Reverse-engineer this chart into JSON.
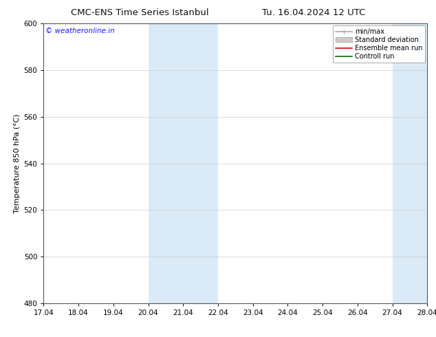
{
  "title_left": "CMC-ENS Time Series Istanbul",
  "title_right": "Tu. 16.04.2024 12 UTC",
  "ylabel": "Temperature 850 hPa (°C)",
  "ylim": [
    480,
    600
  ],
  "yticks": [
    480,
    500,
    520,
    540,
    560,
    580,
    600
  ],
  "xlim": [
    0,
    11
  ],
  "xtick_positions": [
    0,
    1,
    2,
    3,
    4,
    5,
    6,
    7,
    8,
    9,
    10,
    11
  ],
  "xtick_labels": [
    "17.04",
    "18.04",
    "19.04",
    "20.04",
    "21.04",
    "22.04",
    "23.04",
    "24.04",
    "25.04",
    "26.04",
    "27.04",
    "28.04"
  ],
  "shaded_bands": [
    {
      "xmin": 3.0,
      "xmax": 5.0
    },
    {
      "xmin": 10.0,
      "xmax": 11.5
    }
  ],
  "shade_color": "#daeaf7",
  "background_color": "#ffffff",
  "watermark_text": "© weatheronline.in",
  "watermark_color": "#1a1aff",
  "legend_entries": [
    {
      "label": "min/max",
      "color": "#aaaaaa",
      "lw": 1.2,
      "type": "line_bar"
    },
    {
      "label": "Standard deviation",
      "color": "#cccccc",
      "lw": 5,
      "type": "patch"
    },
    {
      "label": "Ensemble mean run",
      "color": "#dd0000",
      "lw": 1.2,
      "type": "line"
    },
    {
      "label": "Controll run",
      "color": "#006600",
      "lw": 1.2,
      "type": "line"
    }
  ],
  "title_fontsize": 9.5,
  "ylabel_fontsize": 8,
  "tick_fontsize": 7.5,
  "legend_fontsize": 7,
  "watermark_fontsize": 7.5,
  "grid_color": "#cccccc",
  "spine_color": "#555555"
}
